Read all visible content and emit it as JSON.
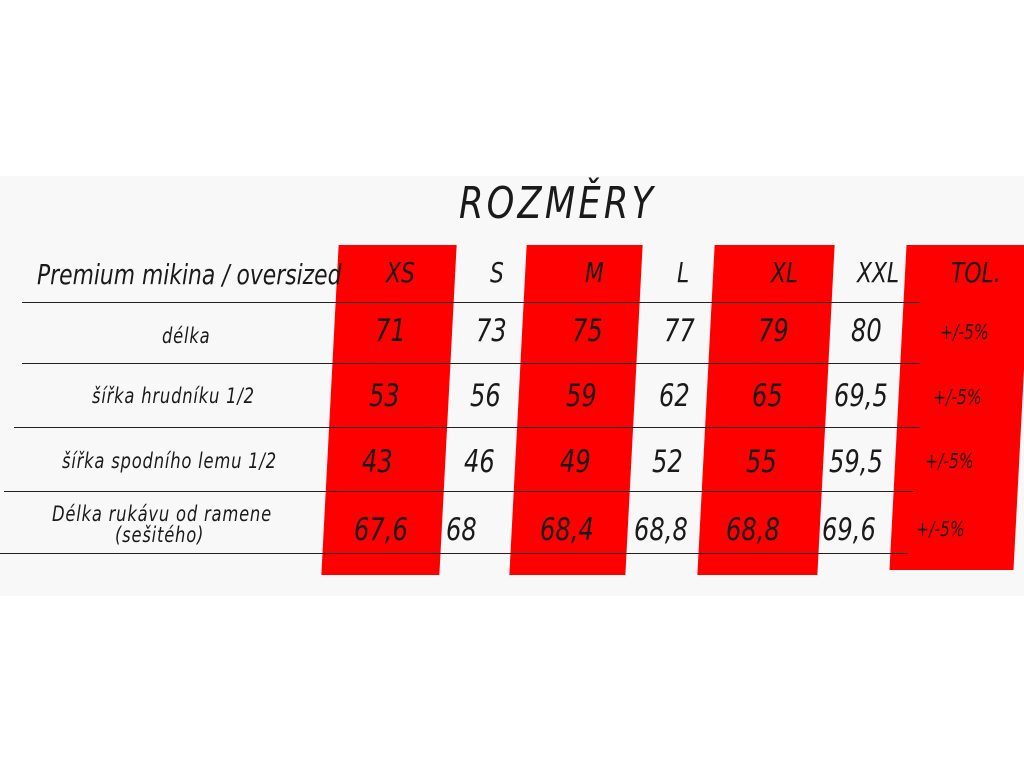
{
  "title": "ROZMĚRY",
  "product_label": "Premium mikina / oversized",
  "sizes": [
    "XS",
    "S",
    "M",
    "L",
    "XL",
    "XXL"
  ],
  "tolerance_header": "TOL.",
  "rows": [
    {
      "label": "délka",
      "values": [
        "71",
        "73",
        "75",
        "77",
        "79",
        "80"
      ],
      "tolerance": "+/-5%"
    },
    {
      "label": "šířka hrudníku 1/2",
      "values": [
        "53",
        "56",
        "59",
        "62",
        "65",
        "69,5"
      ],
      "tolerance": "+/-5%"
    },
    {
      "label": "šířka spodního lemu 1/2",
      "values": [
        "43",
        "46",
        "49",
        "52",
        "55",
        "59,5"
      ],
      "tolerance": "+/-5%"
    },
    {
      "label": "Délka rukávu od ramene",
      "label_line2": "(sešitého)",
      "values": [
        "67,6",
        "68",
        "68,4",
        "68,8",
        "68,8",
        "69,6"
      ],
      "tolerance": "+/-5%"
    }
  ],
  "highlight_color": "#ff0000"
}
